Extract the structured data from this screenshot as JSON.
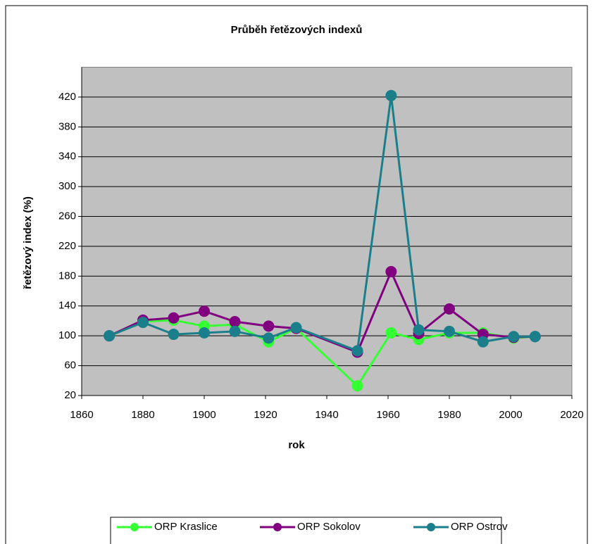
{
  "chart_data": {
    "type": "line",
    "title": "Průběh řetězových indexů",
    "x_label": "rok",
    "y_label": "řetězový index (%)",
    "x": [
      1869,
      1880,
      1890,
      1900,
      1910,
      1921,
      1930,
      1950,
      1961,
      1970,
      1980,
      1991,
      2001,
      2008
    ],
    "series": [
      {
        "name": "ORP Kraslice",
        "color": "#33ff33",
        "values": [
          100,
          119,
          121,
          113,
          115,
          92,
          110,
          33,
          104,
          95,
          104,
          104,
          97,
          99
        ]
      },
      {
        "name": "ORP Sokolov",
        "color": "#800080",
        "values": [
          100,
          121,
          124,
          133,
          119,
          113,
          110,
          78,
          186,
          103,
          136,
          102,
          98,
          99
        ]
      },
      {
        "name": "ORP Ostrov",
        "color": "#1a7f8a",
        "values": [
          100,
          118,
          102,
          104,
          106,
          97,
          111,
          80,
          422,
          108,
          106,
          92,
          99,
          99
        ]
      }
    ],
    "xlim": [
      1860,
      2020
    ],
    "xticks": [
      1860,
      1880,
      1900,
      1920,
      1940,
      1960,
      1980,
      2000,
      2020
    ],
    "ylim": [
      20,
      460
    ],
    "yticks": [
      20,
      60,
      100,
      140,
      180,
      220,
      260,
      300,
      340,
      380,
      420
    ],
    "grid": true,
    "plot_background": "#c0c0c0",
    "legend": "bottom"
  }
}
